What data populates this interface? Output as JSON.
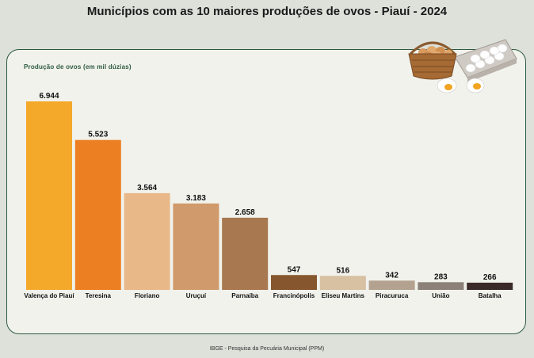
{
  "title": "Municípios com as 10 maiores produções de ovos - Piauí - 2024",
  "source": "IBGE - Pesquisa da Pecuária Municipal (PPM)",
  "chart_data": {
    "type": "bar",
    "title": "Municípios com as 10 maiores produções de ovos - Piauí - 2024",
    "ylabel": "Produção de ovos (em mil dúzias)",
    "xlabel": "",
    "categories": [
      "Valença do Piauí",
      "Teresina",
      "Floriano",
      "Uruçuí",
      "Parnaíba",
      "Francinópolis",
      "Eliseu Martins",
      "Piracuruca",
      "União",
      "Batalha"
    ],
    "values": [
      6944,
      5523,
      3564,
      3183,
      2658,
      547,
      516,
      342,
      283,
      266
    ],
    "value_labels": [
      "6.944",
      "5.523",
      "3.564",
      "3.183",
      "2.658",
      "547",
      "516",
      "342",
      "283",
      "266"
    ],
    "colors": [
      "#f4a92a",
      "#ec7f22",
      "#e9b889",
      "#d09a6c",
      "#a87850",
      "#86572f",
      "#d8c0a2",
      "#b4a290",
      "#8b8178",
      "#3b2b28"
    ],
    "ylim": [
      0,
      7200
    ],
    "grid": false,
    "legend": "none"
  }
}
